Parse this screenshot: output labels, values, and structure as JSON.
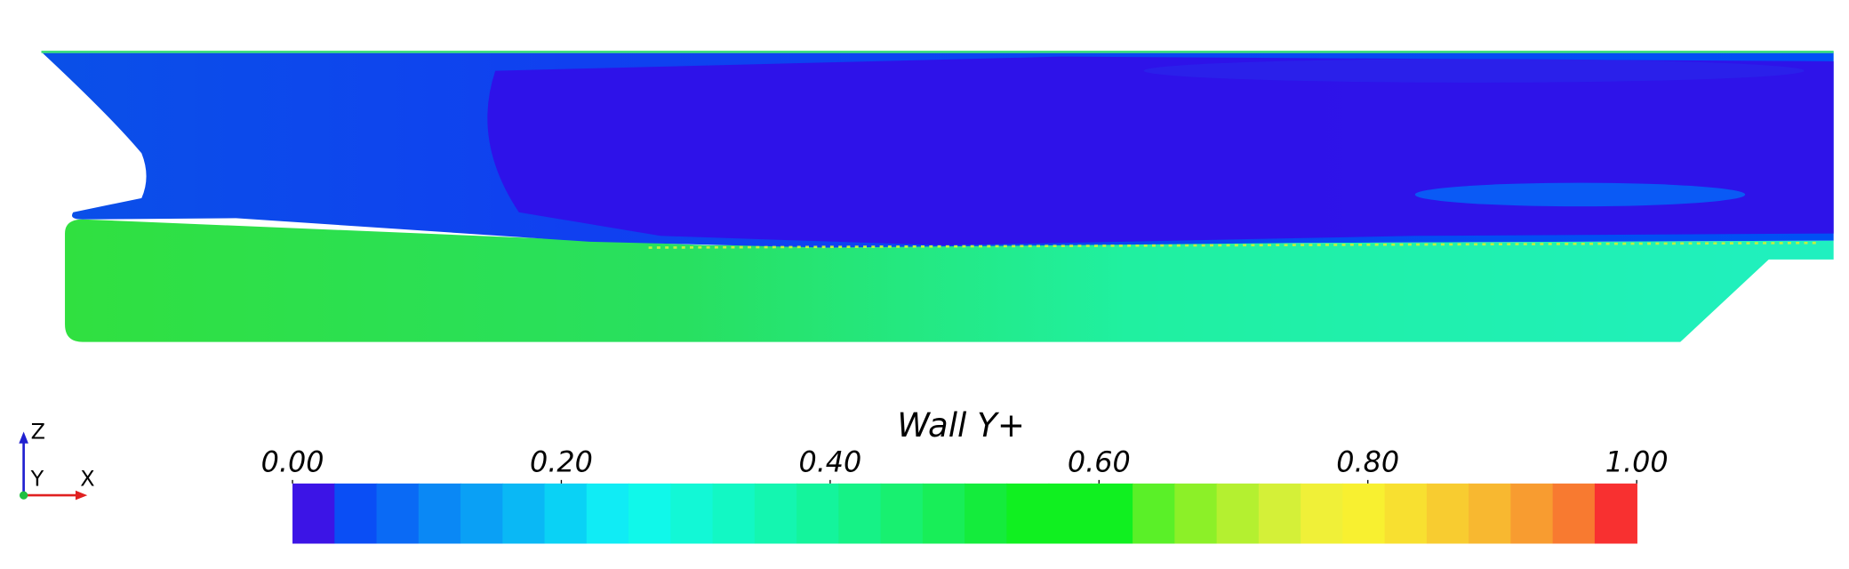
{
  "colorbar": {
    "title": "Wall Y+",
    "range": [
      0,
      1
    ],
    "ticks": [
      {
        "value": 0,
        "label": "0.00"
      },
      {
        "value": 0.2,
        "label": "0.20"
      },
      {
        "value": 0.4,
        "label": "0.40"
      },
      {
        "value": 0.6,
        "label": "0.60"
      },
      {
        "value": 0.8,
        "label": "0.80"
      },
      {
        "value": 1,
        "label": "1.00"
      }
    ],
    "colors": [
      "#3c14e6",
      "#0a4ef5",
      "#0a6af5",
      "#0a88f5",
      "#0aa0f5",
      "#0ab8f5",
      "#0ad2f5",
      "#10ecf5",
      "#10f8ea",
      "#12f8d6",
      "#12f8c4",
      "#14f6b0",
      "#14f49c",
      "#16f286",
      "#18f070",
      "#18ee58",
      "#14ec3c",
      "#10f020",
      "#10f020",
      "#10f020",
      "#5af028",
      "#8cf028",
      "#b4f030",
      "#d4f038",
      "#f0f038",
      "#f8f030",
      "#f8e030",
      "#f8cc30",
      "#f8b830",
      "#f89c30",
      "#f87a30",
      "#f83030"
    ]
  },
  "triad": {
    "z": "Z",
    "y": "Y",
    "x": "X"
  }
}
